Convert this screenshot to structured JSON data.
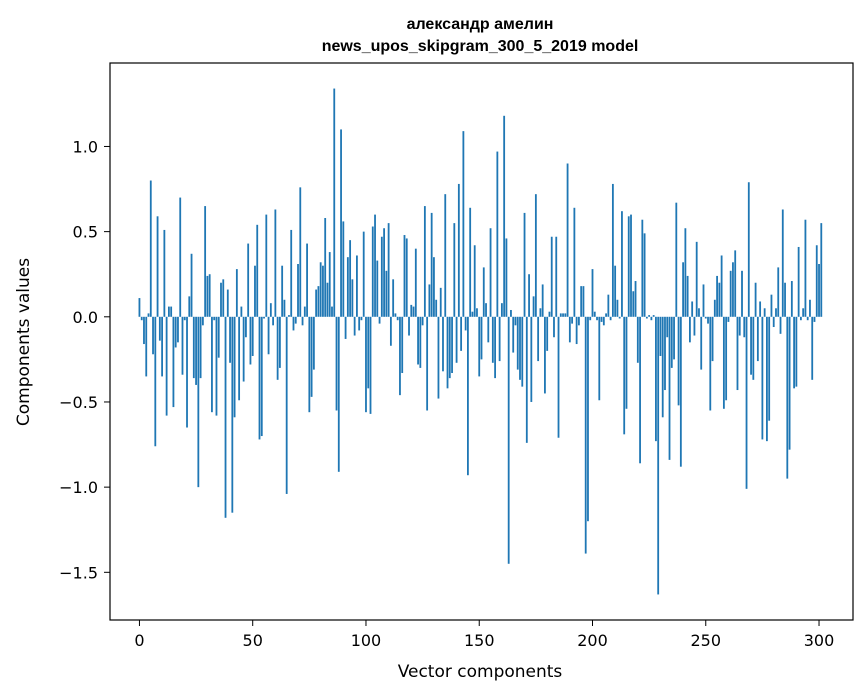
{
  "chart_data": {
    "type": "bar",
    "title": "александр амелин",
    "subtitle": "news_upos_skipgram_300_5_2019 model",
    "xlabel": "Vector components",
    "ylabel": "Components values",
    "xlim": [
      -13,
      315
    ],
    "ylim": [
      -1.78,
      1.49
    ],
    "xticks": [
      0,
      50,
      100,
      150,
      200,
      250,
      300
    ],
    "xtick_labels": [
      "0",
      "50",
      "100",
      "150",
      "200",
      "250",
      "300"
    ],
    "yticks": [
      1.0,
      0.5,
      0.0,
      -0.5,
      -1.0,
      -1.5
    ],
    "ytick_labels": [
      "1.0",
      "0.5",
      "0.0",
      "−0.5",
      "−1.0",
      "−1.5"
    ],
    "bar_color": "#1f77b4",
    "grid": false,
    "values": [
      0.11,
      -0.02,
      -0.16,
      -0.35,
      0.02,
      0.8,
      -0.22,
      -0.76,
      0.59,
      -0.14,
      -0.35,
      0.51,
      -0.58,
      0.06,
      0.06,
      -0.53,
      -0.18,
      -0.15,
      0.7,
      -0.34,
      -0.02,
      -0.65,
      0.12,
      0.37,
      -0.36,
      -0.4,
      -1.0,
      -0.36,
      -0.05,
      0.65,
      0.24,
      0.25,
      -0.56,
      -0.02,
      -0.58,
      -0.24,
      0.2,
      0.22,
      -1.18,
      0.16,
      -0.27,
      -1.15,
      -0.59,
      0.28,
      -0.49,
      0.06,
      -0.38,
      -0.12,
      0.43,
      -0.28,
      -0.23,
      0.3,
      0.54,
      -0.72,
      -0.7,
      -0.01,
      0.6,
      -0.22,
      0.08,
      -0.05,
      0.63,
      -0.37,
      -0.3,
      0.3,
      0.1,
      -1.04,
      0.01,
      0.51,
      -0.08,
      -0.04,
      0.31,
      0.76,
      -0.05,
      0.06,
      0.43,
      -0.56,
      -0.47,
      -0.31,
      0.16,
      0.18,
      0.32,
      0.3,
      0.58,
      0.2,
      0.38,
      0.06,
      1.34,
      -0.55,
      -0.91,
      1.1,
      0.56,
      -0.13,
      0.35,
      0.45,
      0.22,
      -0.11,
      0.36,
      -0.08,
      -0.02,
      0.5,
      -0.56,
      -0.42,
      -0.57,
      0.53,
      0.6,
      0.33,
      -0.04,
      0.47,
      0.52,
      0.27,
      0.55,
      -0.17,
      0.22,
      0.02,
      -0.02,
      -0.46,
      -0.33,
      0.48,
      0.46,
      -0.11,
      0.07,
      0.06,
      0.4,
      -0.28,
      -0.3,
      -0.05,
      0.65,
      -0.55,
      0.19,
      0.61,
      0.35,
      0.1,
      -0.48,
      0.17,
      -0.32,
      0.72,
      -0.42,
      -0.36,
      -0.33,
      0.55,
      -0.27,
      0.78,
      -0.2,
      1.09,
      -0.08,
      -0.93,
      0.64,
      0.03,
      0.42,
      0.05,
      -0.35,
      -0.25,
      0.29,
      0.08,
      -0.15,
      0.52,
      -0.27,
      -0.36,
      0.97,
      -0.26,
      0.08,
      1.18,
      0.46,
      -1.45,
      0.04,
      -0.21,
      -0.05,
      -0.31,
      -0.37,
      -0.41,
      0.61,
      -0.74,
      0.25,
      -0.5,
      0.12,
      0.72,
      -0.26,
      0.05,
      0.19,
      -0.45,
      -0.2,
      0.03,
      0.47,
      -0.12,
      0.47,
      -0.71,
      0.02,
      0.02,
      0.02,
      0.9,
      -0.15,
      -0.04,
      0.64,
      -0.16,
      -0.05,
      0.18,
      0.18,
      -1.39,
      -1.2,
      -0.02,
      0.28,
      0.03,
      -0.02,
      -0.49,
      -0.03,
      -0.05,
      0.02,
      0.13,
      -0.02,
      0.78,
      0.3,
      0.1,
      -0.01,
      0.62,
      -0.69,
      -0.54,
      0.59,
      0.6,
      0.15,
      0.21,
      -0.27,
      -0.86,
      0.57,
      0.49,
      -0.01,
      0.01,
      -0.02,
      0.01,
      -0.73,
      -1.63,
      -0.23,
      -0.59,
      -0.43,
      -0.12,
      -0.84,
      -0.3,
      -0.25,
      0.67,
      -0.52,
      -0.88,
      0.32,
      0.52,
      0.24,
      -0.15,
      0.09,
      -0.11,
      0.44,
      0.05,
      -0.31,
      0.19,
      -0.01,
      -0.04,
      -0.55,
      -0.26,
      0.1,
      0.24,
      0.2,
      0.36,
      -0.54,
      -0.49,
      -0.03,
      0.27,
      0.32,
      0.39,
      -0.43,
      -0.11,
      0.27,
      -0.12,
      -1.01,
      0.79,
      -0.34,
      -0.37,
      0.2,
      -0.26,
      0.09,
      -0.72,
      0.05,
      -0.73,
      -0.61,
      0.13,
      -0.06,
      0.05,
      0.29,
      -0.1,
      0.63,
      0.2,
      -0.95,
      -0.78,
      0.21,
      -0.42,
      -0.41,
      0.41,
      -0.02,
      0.05,
      0.57,
      -0.02,
      0.1,
      -0.37,
      -0.03,
      0.42,
      0.31,
      0.55,
      0.0
    ]
  }
}
